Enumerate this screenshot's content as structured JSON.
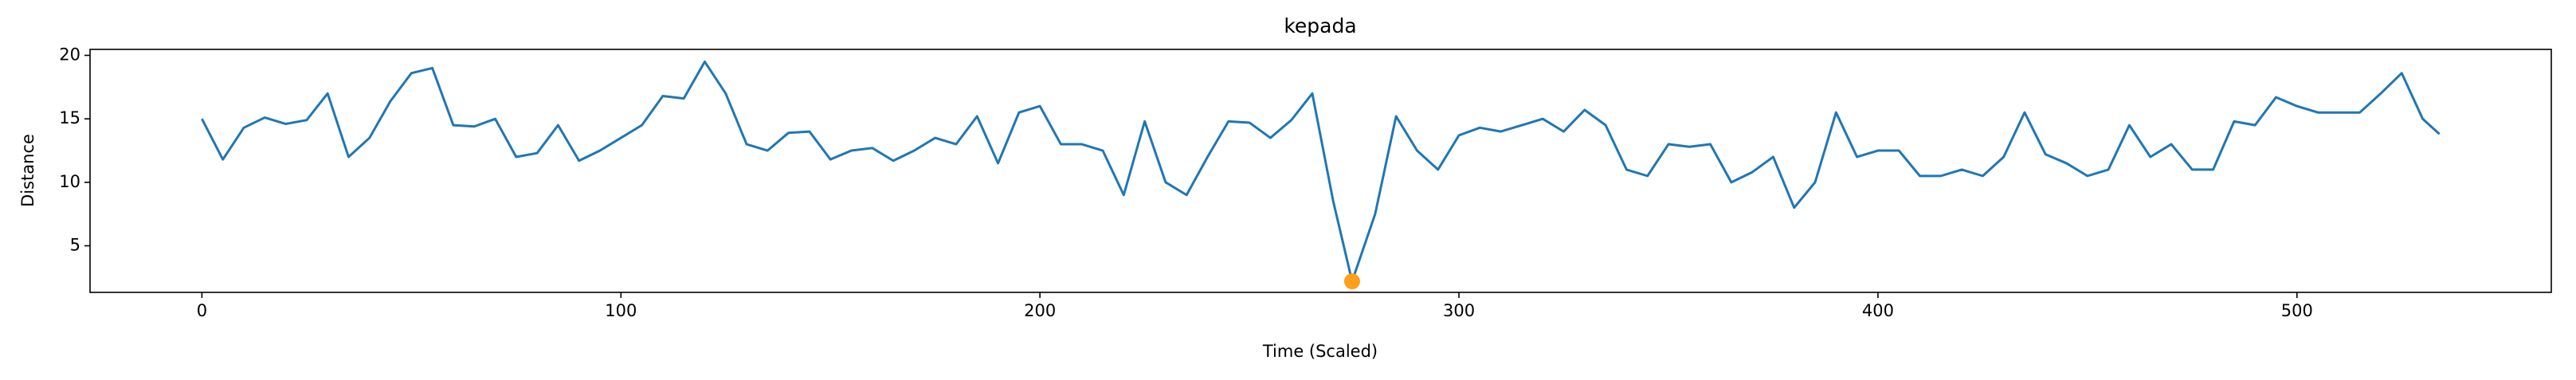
{
  "chart_data": {
    "type": "line",
    "title": "kepada",
    "x_label": "Time (Scaled)",
    "y_label": "Distance",
    "xlim": [
      -26.7,
      560.7
    ],
    "ylim": [
      1.33,
      20.47
    ],
    "xticks": [
      0,
      100,
      200,
      300,
      400,
      500
    ],
    "yticks": [
      5,
      10,
      15,
      20
    ],
    "series": [
      {
        "color": "#1f77b4",
        "x": [
          0,
          5,
          10,
          15,
          20,
          25,
          30,
          35,
          40,
          45,
          50,
          55,
          60,
          65,
          70,
          75,
          80,
          85,
          90,
          95,
          100,
          105,
          110,
          115,
          120,
          125,
          130,
          135,
          140,
          145,
          150,
          155,
          160,
          165,
          170,
          175,
          180,
          185,
          190,
          195,
          200,
          205,
          210,
          215,
          220,
          225,
          230,
          235,
          240,
          245,
          250,
          255,
          260,
          265,
          270,
          274.5,
          280,
          285,
          290,
          295,
          300,
          305,
          310,
          315,
          320,
          325,
          330,
          335,
          340,
          345,
          350,
          355,
          360,
          365,
          370,
          375,
          380,
          385,
          390,
          395,
          400,
          405,
          410,
          415,
          420,
          425,
          430,
          435,
          440,
          445,
          450,
          455,
          460,
          465,
          470,
          475,
          480,
          485,
          490,
          495,
          500,
          505,
          510,
          515,
          520,
          525,
          530,
          534
        ],
        "values": [
          15,
          11.8,
          14.3,
          15.1,
          14.6,
          14.9,
          17,
          12,
          13.5,
          16.4,
          18.6,
          19,
          14.5,
          14.4,
          15,
          12,
          12.3,
          14.5,
          11.7,
          12.5,
          13.5,
          14.5,
          16.8,
          16.6,
          19.5,
          17,
          13,
          12.5,
          13.9,
          14,
          11.8,
          12.5,
          12.7,
          11.7,
          12.5,
          13.5,
          13,
          15.2,
          11.5,
          15.5,
          16,
          13,
          13,
          12.5,
          9,
          14.8,
          10,
          9,
          12,
          14.8,
          14.7,
          13.5,
          14.9,
          17,
          8.5,
          2.2,
          7.5,
          15.2,
          12.5,
          11,
          13.7,
          14.3,
          14,
          14.5,
          15,
          14,
          15.7,
          14.5,
          11,
          10.5,
          13,
          12.8,
          13,
          10,
          10.8,
          12,
          8,
          10,
          15.5,
          12,
          12.5,
          12.5,
          10.5,
          10.5,
          11,
          10.5,
          12,
          15.5,
          12.2,
          11.5,
          10.5,
          11,
          14.5,
          12,
          13,
          11,
          11,
          14.8,
          14.5,
          16.7,
          16,
          15.5,
          15.5,
          15.5,
          17,
          18.6,
          15,
          13.8
        ]
      }
    ],
    "points": {
      "color": "#ff9f1c",
      "x": [
        274.5
      ],
      "values": [
        2.2
      ]
    }
  }
}
